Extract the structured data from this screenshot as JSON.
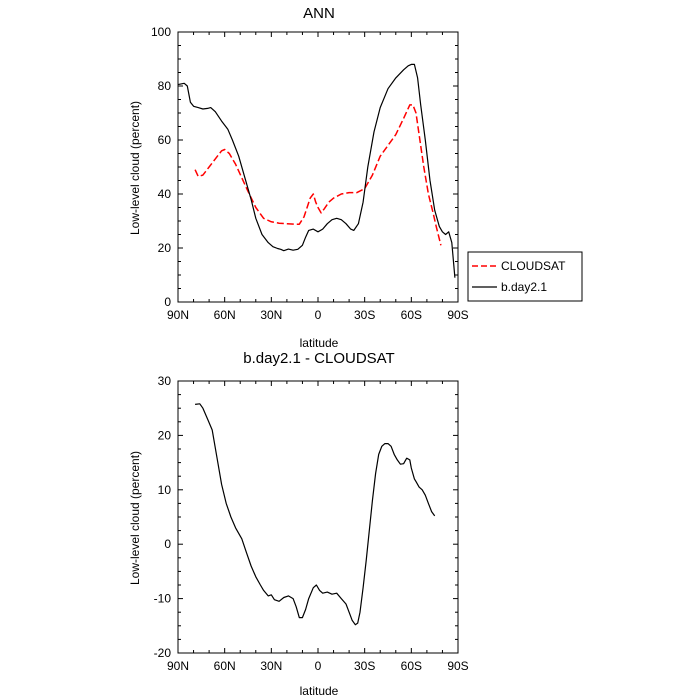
{
  "chart_data": [
    {
      "type": "line",
      "title": "ANN",
      "xlabel": "latitude",
      "ylabel": "Low-level cloud (percent)",
      "xlim": [
        90,
        -90
      ],
      "ylim": [
        0,
        100
      ],
      "x_ticks": [
        90,
        60,
        30,
        0,
        -30,
        -60,
        -90
      ],
      "x_tick_labels": [
        "90N",
        "60N",
        "30N",
        "0",
        "30S",
        "60S",
        "90S"
      ],
      "y_ticks": [
        0,
        20,
        40,
        60,
        80,
        100
      ],
      "y_tick_labels": [
        "0",
        "20",
        "40",
        "60",
        "80",
        "100"
      ],
      "legend": {
        "position": "right",
        "entries": [
          "CLOUDSAT",
          "b.day2.1"
        ]
      },
      "series": [
        {
          "name": "CLOUDSAT",
          "style": "dashed",
          "color": "#ff0000",
          "points": [
            [
              79,
              49
            ],
            [
              77,
              46.5
            ],
            [
              74,
              47
            ],
            [
              70,
              50
            ],
            [
              66,
              53
            ],
            [
              62,
              56
            ],
            [
              60,
              56.5
            ],
            [
              57,
              55
            ],
            [
              53,
              51
            ],
            [
              49,
              46
            ],
            [
              45,
              41
            ],
            [
              40,
              35
            ],
            [
              35,
              31
            ],
            [
              30,
              29.7
            ],
            [
              25,
              29.2
            ],
            [
              20,
              29
            ],
            [
              15,
              28.8
            ],
            [
              12,
              28.8
            ],
            [
              9,
              31.5
            ],
            [
              7,
              35
            ],
            [
              5,
              38.5
            ],
            [
              3,
              40
            ],
            [
              1.5,
              37
            ],
            [
              0,
              35
            ],
            [
              -2,
              33
            ],
            [
              -4,
              34.5
            ],
            [
              -7,
              37
            ],
            [
              -10,
              38.5
            ],
            [
              -15,
              40
            ],
            [
              -20,
              40.5
            ],
            [
              -25,
              40.5
            ],
            [
              -30,
              42
            ],
            [
              -35,
              47
            ],
            [
              -40,
              54
            ],
            [
              -45,
              58
            ],
            [
              -50,
              62
            ],
            [
              -55,
              68
            ],
            [
              -59,
              73
            ],
            [
              -61,
              73
            ],
            [
              -63,
              70
            ],
            [
              -65,
              62
            ],
            [
              -68,
              50
            ],
            [
              -71,
              40
            ],
            [
              -74,
              33
            ],
            [
              -76,
              28
            ],
            [
              -79,
              21
            ]
          ]
        },
        {
          "name": "b.day2.1",
          "style": "solid",
          "color": "#000000",
          "points": [
            [
              90,
              80.5
            ],
            [
              86,
              81
            ],
            [
              84,
              80
            ],
            [
              82,
              74
            ],
            [
              80,
              72.5
            ],
            [
              77,
              72
            ],
            [
              74,
              71.5
            ],
            [
              71,
              71.7
            ],
            [
              69,
              72
            ],
            [
              66,
              70.5
            ],
            [
              62,
              67
            ],
            [
              58,
              64
            ],
            [
              55,
              60
            ],
            [
              51,
              54
            ],
            [
              47,
              46
            ],
            [
              43,
              38
            ],
            [
              40,
              31
            ],
            [
              36,
              25
            ],
            [
              32,
              22
            ],
            [
              29,
              20.5
            ],
            [
              26,
              19.8
            ],
            [
              24,
              19.5
            ],
            [
              22,
              19
            ],
            [
              19,
              19.6
            ],
            [
              16,
              19.2
            ],
            [
              13,
              19.5
            ],
            [
              10,
              21
            ],
            [
              8,
              24
            ],
            [
              6,
              26.5
            ],
            [
              3,
              27
            ],
            [
              0,
              26
            ],
            [
              -3,
              27
            ],
            [
              -6,
              29
            ],
            [
              -9,
              30.5
            ],
            [
              -12,
              31
            ],
            [
              -15,
              30.5
            ],
            [
              -18,
              29
            ],
            [
              -21,
              27
            ],
            [
              -23,
              26.5
            ],
            [
              -26,
              29
            ],
            [
              -29,
              37
            ],
            [
              -32,
              50
            ],
            [
              -36,
              63
            ],
            [
              -40,
              72
            ],
            [
              -45,
              79
            ],
            [
              -50,
              83
            ],
            [
              -55,
              86
            ],
            [
              -58,
              87.5
            ],
            [
              -60,
              88
            ],
            [
              -62,
              88
            ],
            [
              -64,
              83
            ],
            [
              -66,
              73
            ],
            [
              -69,
              60
            ],
            [
              -72,
              45
            ],
            [
              -75,
              34
            ],
            [
              -78,
              28
            ],
            [
              -80,
              26
            ],
            [
              -82,
              25
            ],
            [
              -84,
              26
            ],
            [
              -86,
              22
            ],
            [
              -88,
              9
            ]
          ]
        }
      ]
    },
    {
      "type": "line",
      "title": "b.day2.1 - CLOUDSAT",
      "xlabel": "latitude",
      "ylabel": "Low-level cloud (percent)",
      "xlim": [
        90,
        -90
      ],
      "ylim": [
        -20,
        30
      ],
      "x_ticks": [
        90,
        60,
        30,
        0,
        -30,
        -60,
        -90
      ],
      "x_tick_labels": [
        "90N",
        "60N",
        "30N",
        "0",
        "30S",
        "60S",
        "90S"
      ],
      "y_ticks": [
        -20,
        -10,
        0,
        10,
        20,
        30
      ],
      "y_tick_labels": [
        "-20",
        "-10",
        "0",
        "10",
        "20",
        "30"
      ],
      "series": [
        {
          "name": "b.day2.1 - CLOUDSAT",
          "style": "solid",
          "color": "#000000",
          "points": [
            [
              79,
              25.7
            ],
            [
              76,
              25.8
            ],
            [
              74,
              25
            ],
            [
              71,
              23
            ],
            [
              68,
              21
            ],
            [
              65,
              16
            ],
            [
              62,
              11
            ],
            [
              59,
              7.5
            ],
            [
              56,
              5
            ],
            [
              53,
              3
            ],
            [
              49,
              1
            ],
            [
              46,
              -1.5
            ],
            [
              43,
              -4
            ],
            [
              40,
              -6
            ],
            [
              37,
              -7.5
            ],
            [
              35,
              -8.5
            ],
            [
              32,
              -9.5
            ],
            [
              30,
              -9.3
            ],
            [
              28,
              -10.2
            ],
            [
              25,
              -10.5
            ],
            [
              22,
              -9.8
            ],
            [
              19,
              -9.5
            ],
            [
              16,
              -10
            ],
            [
              14,
              -11.5
            ],
            [
              12,
              -13.5
            ],
            [
              10,
              -13.5
            ],
            [
              8,
              -12
            ],
            [
              6,
              -10
            ],
            [
              3,
              -8
            ],
            [
              1,
              -7.5
            ],
            [
              -1,
              -8.5
            ],
            [
              -3,
              -9
            ],
            [
              -6,
              -8.8
            ],
            [
              -9,
              -9.2
            ],
            [
              -12,
              -9
            ],
            [
              -15,
              -10
            ],
            [
              -18,
              -11
            ],
            [
              -20,
              -12.5
            ],
            [
              -22,
              -14
            ],
            [
              -24,
              -14.8
            ],
            [
              -25.5,
              -14.5
            ],
            [
              -27,
              -12.5
            ],
            [
              -29,
              -8
            ],
            [
              -31,
              -3
            ],
            [
              -33,
              2.5
            ],
            [
              -35,
              8
            ],
            [
              -37,
              13
            ],
            [
              -39,
              16.5
            ],
            [
              -41,
              18
            ],
            [
              -43,
              18.5
            ],
            [
              -45,
              18.5
            ],
            [
              -47,
              18
            ],
            [
              -49,
              16.5
            ],
            [
              -51,
              15.5
            ],
            [
              -53,
              14.7
            ],
            [
              -55,
              14.8
            ],
            [
              -57,
              15.8
            ],
            [
              -59,
              15.5
            ],
            [
              -60,
              14
            ],
            [
              -62,
              12
            ],
            [
              -63,
              11.5
            ],
            [
              -65,
              10.5
            ],
            [
              -67,
              10
            ],
            [
              -69,
              9
            ],
            [
              -71,
              7.5
            ],
            [
              -73,
              6
            ],
            [
              -75,
              5.2
            ]
          ]
        }
      ]
    }
  ]
}
